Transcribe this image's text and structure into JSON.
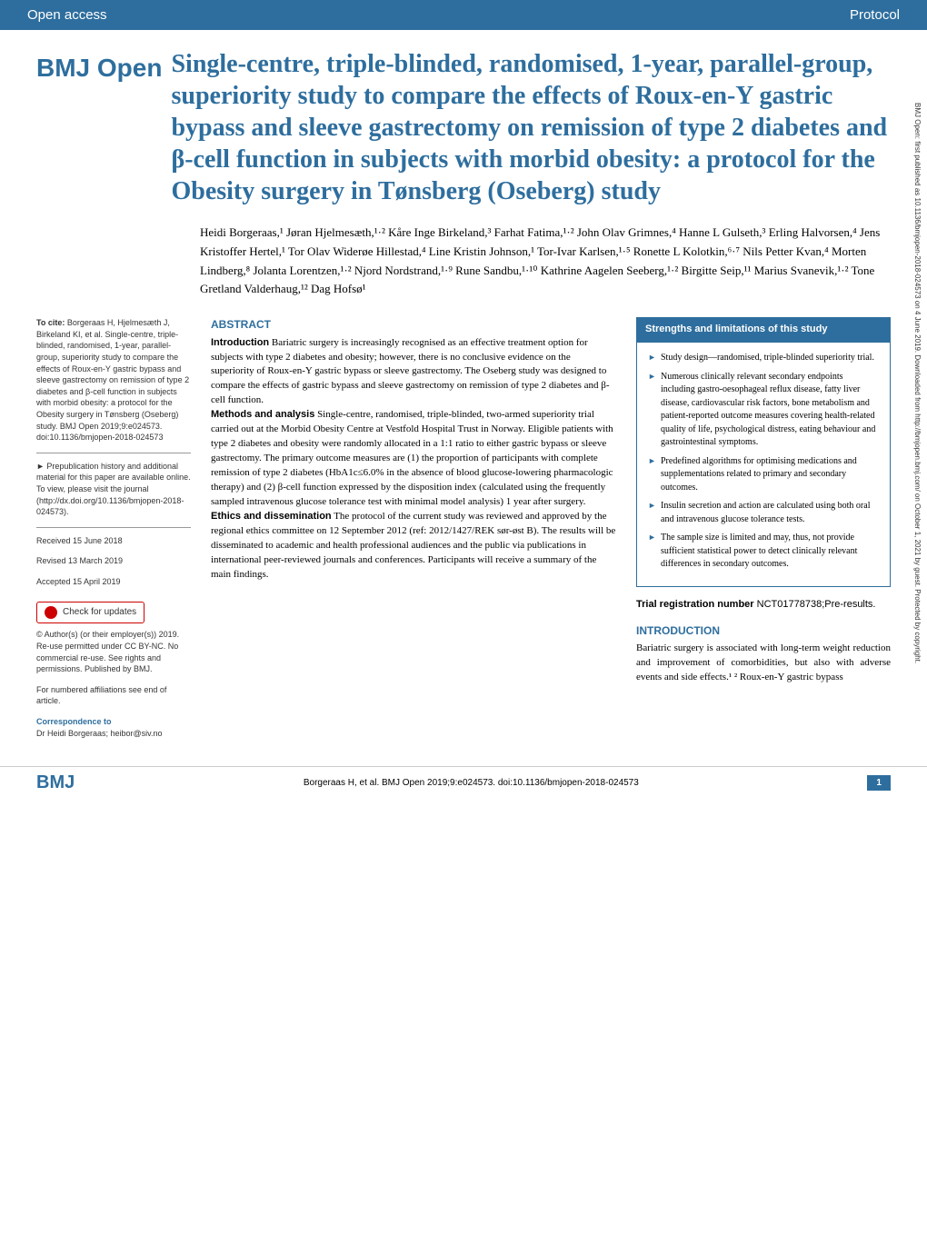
{
  "header": {
    "left": "Open access",
    "right": "Protocol"
  },
  "journal_logo": "BMJ Open",
  "title": "Single-centre, triple-blinded, randomised, 1-year, parallel-group, superiority study to compare the effects of Roux-en-Y gastric bypass and sleeve gastrectomy on remission of type 2 diabetes and β-cell function in subjects with morbid obesity: a protocol for the Obesity surgery in Tønsberg (Oseberg) study",
  "authors": "Heidi Borgeraas,¹ Jøran Hjelmesæth,¹·² Kåre Inge Birkeland,³ Farhat Fatima,¹·² John Olav Grimnes,⁴ Hanne L Gulseth,³ Erling Halvorsen,⁴ Jens Kristoffer Hertel,¹ Tor Olav Widerøe Hillestad,⁴ Line Kristin Johnson,¹ Tor-Ivar Karlsen,¹·⁵ Ronette L Kolotkin,⁶·⁷ Nils Petter Kvan,⁴ Morten Lindberg,⁸ Jolanta Lorentzen,¹·² Njord Nordstrand,¹·⁹ Rune Sandbu,¹·¹⁰ Kathrine Aagelen Seeberg,¹·² Birgitte Seip,¹¹ Marius Svanevik,¹·² Tone Gretland Valderhaug,¹² Dag Hofsø¹",
  "sidebar": {
    "cite_label": "To cite:",
    "cite_text": " Borgeraas H, Hjelmesæth J, Birkeland KI, et al. Single-centre, triple-blinded, randomised, 1-year, parallel-group, superiority study to compare the effects of Roux-en-Y gastric bypass and sleeve gastrectomy on remission of type 2 diabetes and β-cell function in subjects with morbid obesity: a protocol for the Obesity surgery in Tønsberg (Oseberg) study. BMJ Open 2019;9:e024573. doi:10.1136/bmjopen-2018-024573",
    "prepub": "► Prepublication history and additional material for this paper are available online. To view, please visit the journal (http://dx.doi.org/10.1136/bmjopen-2018-024573).",
    "received": "Received 15 June 2018",
    "revised": "Revised 13 March 2019",
    "accepted": "Accepted 15 April 2019",
    "check_updates": "Check for updates",
    "license": "© Author(s) (or their employer(s)) 2019. Re-use permitted under CC BY-NC. No commercial re-use. See rights and permissions. Published by BMJ.",
    "affiliations": "For numbered affiliations see end of article.",
    "correspondence_label": "Correspondence to",
    "correspondence": "Dr Heidi Borgeraas; heibor@siv.no"
  },
  "abstract": {
    "heading": "ABSTRACT",
    "intro_label": "Introduction",
    "intro": " Bariatric surgery is increasingly recognised as an effective treatment option for subjects with type 2 diabetes and obesity; however, there is no conclusive evidence on the superiority of Roux-en-Y gastric bypass or sleeve gastrectomy. The Oseberg study was designed to compare the effects of gastric bypass and sleeve gastrectomy on remission of type 2 diabetes and β-cell function.",
    "methods_label": "Methods and analysis",
    "methods": " Single-centre, randomised, triple-blinded, two-armed superiority trial carried out at the Morbid Obesity Centre at Vestfold Hospital Trust in Norway. Eligible patients with type 2 diabetes and obesity were randomly allocated in a 1:1 ratio to either gastric bypass or sleeve gastrectomy. The primary outcome measures are (1) the proportion of participants with complete remission of type 2 diabetes (HbA1c≤6.0% in the absence of blood glucose-lowering pharmacologic therapy) and (2) β-cell function expressed by the disposition index (calculated using the frequently sampled intravenous glucose tolerance test with minimal model analysis) 1 year after surgery.",
    "ethics_label": "Ethics and dissemination",
    "ethics": " The protocol of the current study was reviewed and approved by the regional ethics committee on 12 September 2012 (ref: 2012/1427/REK sør-øst B). The results will be disseminated to academic and health professional audiences and the public via publications in international peer-reviewed journals and conferences. Participants will receive a summary of the main findings."
  },
  "box": {
    "heading": "Strengths and limitations of this study",
    "items": [
      "Study design—randomised, triple-blinded superiority trial.",
      "Numerous clinically relevant secondary endpoints including gastro-oesophageal reflux disease, fatty liver disease, cardiovascular risk factors, bone metabolism and patient-reported outcome measures covering health-related quality of life, psychological distress, eating behaviour and gastrointestinal symptoms.",
      "Predefined algorithms for optimising medications and supplementations related to primary and secondary outcomes.",
      "Insulin secretion and action are calculated using both oral and intravenous glucose tolerance tests.",
      "The sample size is limited and may, thus, not provide sufficient statistical power to detect clinically relevant differences in secondary outcomes."
    ]
  },
  "trial_reg_label": "Trial registration number",
  "trial_reg": " NCT01778738;Pre-results.",
  "intro_heading": "INTRODUCTION",
  "intro_text": "Bariatric surgery is associated with long-term weight reduction and improvement of comorbidities, but also with adverse events and side effects.¹ ² Roux-en-Y gastric bypass",
  "side_text": "BMJ Open: first published as 10.1136/bmjopen-2018-024573 on 4 June 2019. Downloaded from http://bmjopen.bmj.com/ on October 1, 2021 by guest. Protected by copyright.",
  "footer": {
    "logo": "BMJ",
    "citation": "Borgeraas H, et al. BMJ Open 2019;9:e024573. doi:10.1136/bmjopen-2018-024573",
    "page": "1"
  },
  "colors": {
    "brand": "#2e6e9e",
    "text": "#333333",
    "bg": "#ffffff"
  }
}
